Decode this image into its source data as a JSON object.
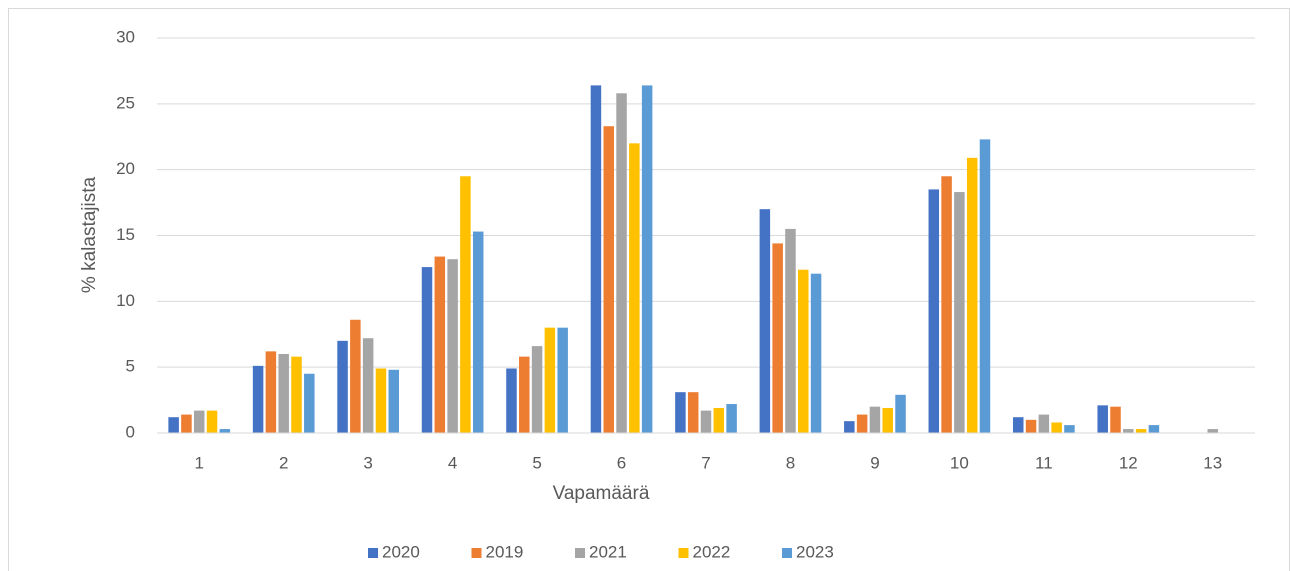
{
  "chart_data": {
    "type": "bar",
    "categories": [
      "1",
      "2",
      "3",
      "4",
      "5",
      "6",
      "7",
      "8",
      "9",
      "10",
      "11",
      "12",
      "13"
    ],
    "series": [
      {
        "name": "2020",
        "color": "#4472c4",
        "values": [
          1.2,
          5.1,
          7.0,
          12.6,
          4.9,
          26.4,
          3.1,
          17.0,
          0.9,
          18.5,
          1.2,
          2.1,
          0
        ]
      },
      {
        "name": "2019",
        "color": "#ed7d31",
        "values": [
          1.4,
          6.2,
          8.6,
          13.4,
          5.8,
          23.3,
          3.1,
          14.4,
          1.4,
          19.5,
          1.0,
          2.0,
          0
        ]
      },
      {
        "name": "2021",
        "color": "#a5a5a5",
        "values": [
          1.7,
          6.0,
          7.2,
          13.2,
          6.6,
          25.8,
          1.7,
          15.5,
          2.0,
          18.3,
          1.4,
          0.3,
          0.3
        ]
      },
      {
        "name": "2022",
        "color": "#ffc000",
        "values": [
          1.7,
          5.8,
          4.9,
          19.5,
          8.0,
          22.0,
          1.9,
          12.4,
          1.9,
          20.9,
          0.8,
          0.3,
          0
        ]
      },
      {
        "name": "2023",
        "color": "#5b9bd5",
        "values": [
          0.3,
          4.5,
          4.8,
          15.3,
          8.0,
          26.4,
          2.2,
          12.1,
          2.9,
          22.3,
          0.6,
          0.6,
          0
        ]
      }
    ],
    "xlabel": "Vapamäärä",
    "ylabel": "% kalastajista",
    "ylim": [
      0,
      30
    ],
    "yticks": [
      0,
      5,
      10,
      15,
      20,
      25,
      30
    ],
    "grid": true,
    "legend": "bottom"
  }
}
